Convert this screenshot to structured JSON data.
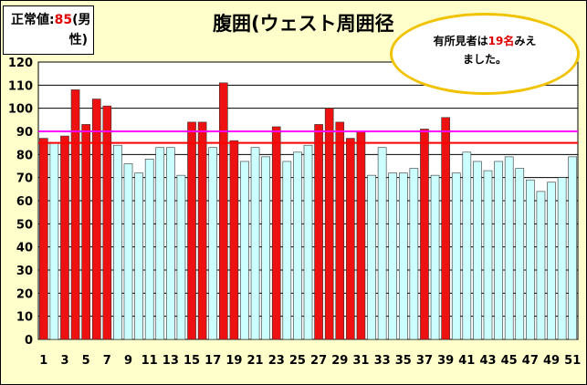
{
  "normal_note": {
    "prefix": "正常値:",
    "value": "85",
    "suffix_line1": "(男",
    "suffix_line2": "性)"
  },
  "title": "腹囲(ウェスト周囲径",
  "callout": {
    "line1_pre": "有所見者は",
    "count": "19名",
    "line1_post": "みえ",
    "line2": "ました。"
  },
  "colors": {
    "above": "#ee1111",
    "normal": "#ccffff",
    "reference_line": "#ff0000",
    "upper_line": "#ff00ff",
    "background": "#ffffcc"
  },
  "chart_data": {
    "type": "bar",
    "ylim": [
      0,
      120
    ],
    "yticks": [
      0,
      10,
      20,
      30,
      40,
      50,
      60,
      70,
      80,
      90,
      100,
      110,
      120
    ],
    "xtick_labels": [
      "1",
      "3",
      "5",
      "7",
      "9",
      "11",
      "13",
      "15",
      "17",
      "19",
      "21",
      "23",
      "25",
      "27",
      "29",
      "31",
      "33",
      "35",
      "37",
      "39",
      "41",
      "43",
      "45",
      "47",
      "49",
      "51"
    ],
    "x": [
      1,
      2,
      3,
      4,
      5,
      6,
      7,
      8,
      9,
      10,
      11,
      12,
      13,
      14,
      15,
      16,
      17,
      18,
      19,
      20,
      21,
      22,
      23,
      24,
      25,
      26,
      27,
      28,
      29,
      30,
      31,
      32,
      33,
      34,
      35,
      36,
      37,
      38,
      39,
      40,
      41,
      42,
      43,
      44,
      45,
      46,
      47,
      48,
      49,
      50,
      51
    ],
    "values": [
      87,
      85,
      88,
      108,
      93,
      104,
      101,
      84,
      76,
      72,
      78,
      83,
      83,
      71,
      94,
      94,
      83,
      111,
      86,
      77,
      83,
      79,
      92,
      77,
      81,
      84,
      93,
      100,
      94,
      87,
      90,
      71,
      83,
      72,
      72,
      74,
      91,
      71,
      96,
      72,
      81,
      77,
      73,
      77,
      79,
      74,
      69,
      64,
      68,
      70,
      79
    ],
    "reference_lines": [
      85,
      90
    ]
  }
}
